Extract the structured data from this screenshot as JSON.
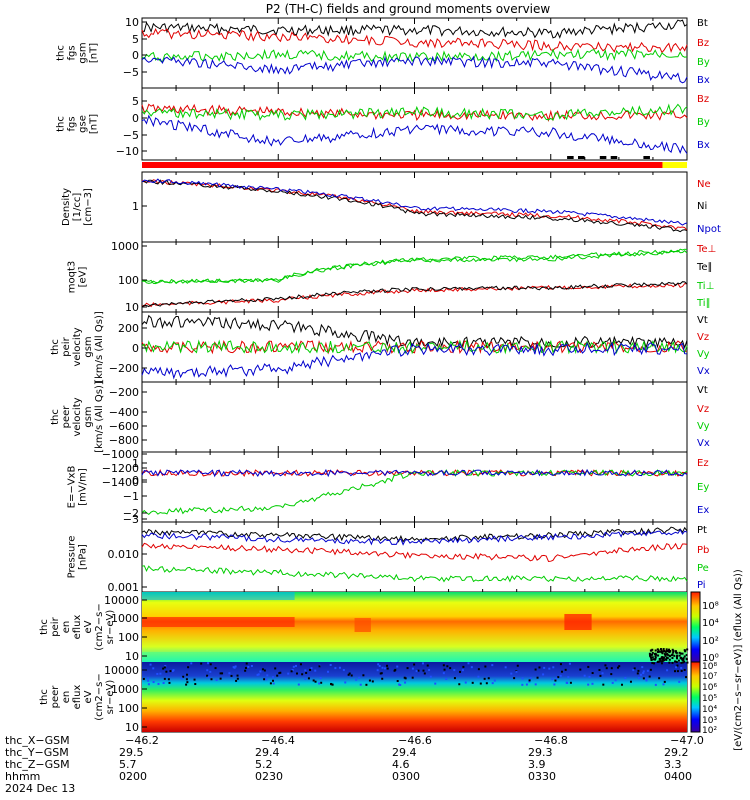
{
  "title": "P2 (TH-C) fields and ground moments overview",
  "colors": {
    "black": "#000000",
    "red": "#e00000",
    "green": "#00cc00",
    "blue": "#0000cc",
    "yellow": "#ffff00"
  },
  "panels": [
    {
      "ylabel": [
        "thc",
        "fgs",
        "gsm",
        "[nT]"
      ],
      "yticks": [
        "10",
        "5",
        "0",
        "−5"
      ],
      "legend": [
        {
          "text": "Bt",
          "color": "black"
        },
        {
          "text": "Bz",
          "color": "red"
        },
        {
          "text": "By",
          "color": "green"
        },
        {
          "text": "Bx",
          "color": "blue"
        }
      ]
    },
    {
      "ylabel": [
        "thc",
        "fgs",
        "gse",
        "[nT]"
      ],
      "yticks": [
        "5",
        "0",
        "−5",
        "−10"
      ],
      "legend": [
        {
          "text": "Bz",
          "color": "red"
        },
        {
          "text": "By",
          "color": "green"
        },
        {
          "text": "Bx",
          "color": "blue"
        }
      ]
    },
    {
      "ylabel": [
        "Density",
        "[1/cc]",
        "[cm−3]"
      ],
      "yticks": [
        "1"
      ],
      "legend": [
        {
          "text": "Ne",
          "color": "red"
        },
        {
          "text": "Ni",
          "color": "black"
        },
        {
          "text": "Npot",
          "color": "blue"
        }
      ]
    },
    {
      "ylabel": [
        "moqt3",
        "[eV]"
      ],
      "yticks": [
        "1000",
        "100",
        "10"
      ],
      "legend": [
        {
          "text": "Te⊥",
          "color": "red"
        },
        {
          "text": "Te∥",
          "color": "black"
        },
        {
          "text": "Ti⊥",
          "color": "green"
        },
        {
          "text": "Ti∥",
          "color": "green"
        }
      ]
    },
    {
      "ylabel": [
        "thc",
        "peir",
        "velocity",
        "gsm",
        "[km/s (All Qs)]"
      ],
      "yticks": [
        "200",
        "0",
        "−200"
      ],
      "legend": [
        {
          "text": "Vt",
          "color": "black"
        },
        {
          "text": "Vz",
          "color": "red"
        },
        {
          "text": "Vy",
          "color": "green"
        },
        {
          "text": "Vx",
          "color": "blue"
        }
      ]
    },
    {
      "ylabel": [
        "thc",
        "peer",
        "velocity",
        "gsm",
        "[km/s (All Qs)]"
      ],
      "yticks": [
        "−200",
        "−400",
        "−600",
        "−800",
        "−1000",
        "−1200",
        "−1400"
      ],
      "legend": [
        {
          "text": "Vt",
          "color": "black"
        },
        {
          "text": "Vz",
          "color": "red"
        },
        {
          "text": "Vy",
          "color": "green"
        },
        {
          "text": "Vx",
          "color": "blue"
        }
      ]
    },
    {
      "ylabel": [
        "E=−VxB",
        "[mV/m]"
      ],
      "yticks": [
        "1",
        "0",
        "−1",
        "−2",
        "−3"
      ],
      "legend": [
        {
          "text": "Ez",
          "color": "red"
        },
        {
          "text": "Ey",
          "color": "green"
        },
        {
          "text": "Ex",
          "color": "blue"
        }
      ]
    },
    {
      "ylabel": [
        "Pressure",
        "[nPa]"
      ],
      "yticks": [
        "0.010",
        "0.001"
      ],
      "legend": [
        {
          "text": "Pt",
          "color": "black"
        },
        {
          "text": "Pb",
          "color": "red"
        },
        {
          "text": "Pe",
          "color": "green"
        },
        {
          "text": "Pi",
          "color": "blue"
        }
      ]
    },
    {
      "ylabel": [
        "thc",
        "peir",
        "en",
        "eflux",
        "eV",
        "(cm2−s−",
        "sr−eV)"
      ],
      "yticks": [
        "10000",
        "1000",
        "100",
        "10"
      ]
    },
    {
      "ylabel": [
        "thc",
        "peer",
        "en",
        "eflux",
        "eV",
        "(cm2−s−",
        "sr−eV)"
      ],
      "yticks": [
        "10000",
        "1000",
        "100",
        "10"
      ]
    }
  ],
  "colorbar": {
    "label": "[eV/(cm2−s−sr−eV)] (eflux (All Qs))",
    "upper_ticks": [
      "10⁸",
      "10⁴",
      "10²",
      "10⁰"
    ],
    "lower_ticks": [
      "10⁸",
      "10⁷",
      "10⁶",
      "10⁵",
      "10⁴",
      "10³",
      "10²"
    ]
  },
  "xaxis": {
    "x_gsm": [
      "−46.2",
      "−46.4",
      "−46.6",
      "−46.8",
      "−47.0"
    ],
    "rows": [
      {
        "label": "thc_Y−GSM",
        "values": [
          "29.5",
          "29.4",
          "29.4",
          "29.3",
          "29.2"
        ]
      },
      {
        "label": "thc_Z−GSM",
        "values": [
          "5.7",
          "5.2",
          "4.6",
          "3.9",
          "3.3"
        ]
      },
      {
        "label": "hhmm",
        "values": [
          "0200",
          "0230",
          "0300",
          "0330",
          "0400"
        ]
      }
    ],
    "first_row_label": "thc_X−GSM",
    "date": "2024 Dec 13"
  },
  "chart_data": [
    {
      "type": "line",
      "title": "P2 (TH-C) fields and ground moments overview",
      "x": [
        "0200",
        "0230",
        "0300",
        "0330",
        "0400"
      ],
      "ylim": [
        -12,
        11
      ],
      "series": [
        {
          "name": "Bt",
          "values": [
            8,
            7,
            7,
            6,
            9
          ]
        },
        {
          "name": "Bz",
          "values": [
            6,
            5,
            3,
            2,
            1
          ]
        },
        {
          "name": "By",
          "values": [
            -2,
            -1,
            -2,
            -1,
            -1
          ]
        },
        {
          "name": "Bx",
          "values": [
            -2,
            -6,
            -3,
            -4,
            -9
          ]
        }
      ]
    },
    {
      "type": "line",
      "x": [
        "0200",
        "0230",
        "0300",
        "0330",
        "0400"
      ],
      "ylim": [
        -13,
        8
      ],
      "series": [
        {
          "name": "Bz",
          "values": [
            2,
            1,
            0,
            0,
            0
          ]
        },
        {
          "name": "By",
          "values": [
            1,
            0,
            1,
            0,
            2
          ]
        },
        {
          "name": "Bx",
          "values": [
            -1,
            -8,
            -4,
            -5,
            -10
          ]
        }
      ]
    },
    {
      "type": "line",
      "x": [
        "0200",
        "0230",
        "0300",
        "0330",
        "0400"
      ],
      "ylabel": "Density [1/cc]",
      "series": [
        {
          "name": "Ne",
          "values": [
            2.5,
            1.5,
            0.5,
            0.4,
            0.2
          ]
        },
        {
          "name": "Ni",
          "values": [
            2.5,
            1.4,
            0.45,
            0.35,
            0.18
          ]
        },
        {
          "name": "Npot",
          "values": [
            2.6,
            1.6,
            0.6,
            0.5,
            0.25
          ]
        }
      ]
    },
    {
      "type": "line",
      "x": [
        "0200",
        "0230",
        "0300",
        "0330",
        "0400"
      ],
      "ylabel": "[eV]",
      "series": [
        {
          "name": "Te⊥",
          "values": [
            12,
            18,
            40,
            50,
            60
          ]
        },
        {
          "name": "Te∥",
          "values": [
            12,
            20,
            45,
            50,
            70
          ]
        },
        {
          "name": "Ti⊥",
          "values": [
            80,
            90,
            500,
            600,
            1000
          ]
        },
        {
          "name": "Ti∥",
          "values": [
            80,
            90,
            450,
            500,
            900
          ]
        }
      ]
    },
    {
      "type": "line",
      "x": [
        "0200",
        "0230",
        "0300",
        "0330",
        "0400"
      ],
      "ylim": [
        -400,
        400
      ],
      "series": [
        {
          "name": "Vt",
          "values": [
            300,
            250,
            50,
            60,
            40
          ]
        },
        {
          "name": "Vz",
          "values": [
            0,
            0,
            0,
            0,
            0
          ]
        },
        {
          "name": "Vy",
          "values": [
            0,
            0,
            0,
            0,
            0
          ]
        },
        {
          "name": "Vx",
          "values": [
            -300,
            -250,
            -20,
            -30,
            -10
          ]
        }
      ]
    },
    {
      "type": "line",
      "x": [
        "0200",
        "0230",
        "0300",
        "0330",
        "0400"
      ],
      "ylim": [
        -1400,
        0
      ],
      "series": []
    },
    {
      "type": "line",
      "x": [
        "0200",
        "0230",
        "0300",
        "0330",
        "0400"
      ],
      "ylim": [
        -3.5,
        1.5
      ],
      "series": [
        {
          "name": "Ez",
          "values": [
            0,
            0,
            0,
            0,
            0
          ]
        },
        {
          "name": "Ey",
          "values": [
            -2.8,
            -2.5,
            0,
            0,
            0
          ]
        },
        {
          "name": "Ex",
          "values": [
            0,
            0,
            0,
            0,
            0
          ]
        }
      ]
    },
    {
      "type": "line",
      "x": [
        "0200",
        "0230",
        "0300",
        "0330",
        "0400"
      ],
      "ylabel": "Pressure [nPa]",
      "series": [
        {
          "name": "Pt",
          "values": [
            0.05,
            0.04,
            0.03,
            0.04,
            0.06
          ]
        },
        {
          "name": "Pb",
          "values": [
            0.02,
            0.015,
            0.01,
            0.008,
            0.02
          ]
        },
        {
          "name": "Pe",
          "values": [
            0.004,
            0.003,
            0.002,
            0.002,
            0.002
          ]
        },
        {
          "name": "Pi",
          "values": [
            0.04,
            0.03,
            0.025,
            0.035,
            0.05
          ]
        }
      ]
    },
    {
      "type": "heatmap",
      "ylabel": "eV",
      "x": [
        "0200",
        "0230",
        "0300",
        "0330",
        "0400"
      ]
    },
    {
      "type": "heatmap",
      "ylabel": "eV",
      "x": [
        "0200",
        "0230",
        "0300",
        "0330",
        "0400"
      ]
    }
  ]
}
